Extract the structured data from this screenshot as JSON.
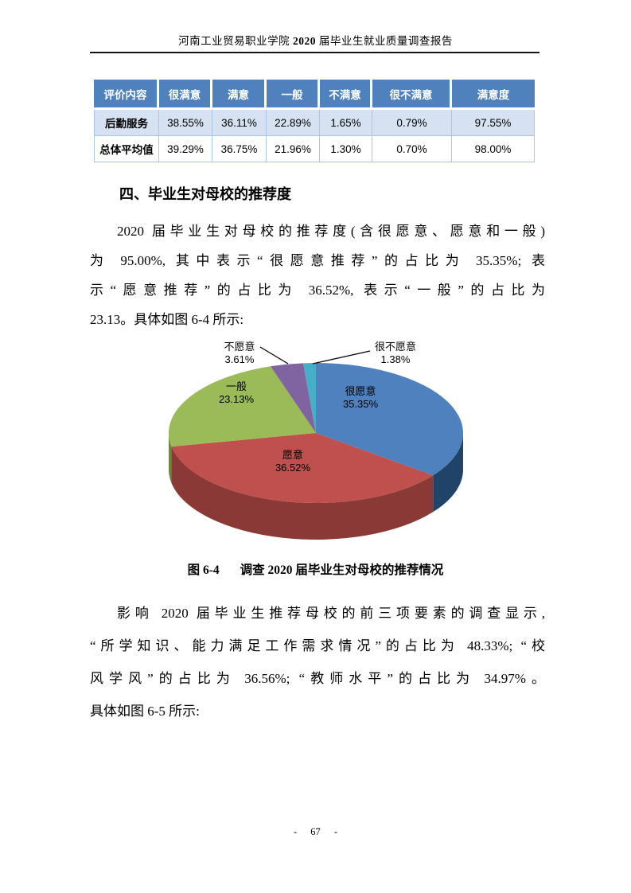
{
  "page": {
    "header_title_parts": [
      "河南工业贸易职业学院 ",
      "2020",
      " 届毕业生就业质量调查报告"
    ],
    "page_number": "- 67 -"
  },
  "table": {
    "headers": [
      "评价内容",
      "很满意",
      "满意",
      "一般",
      "不满意",
      "很不满意",
      "满意度"
    ],
    "rows": [
      {
        "label": "后勤服务",
        "values": [
          "38.55%",
          "36.11%",
          "22.89%",
          "1.65%",
          "0.79%",
          "97.55%"
        ]
      },
      {
        "label": "总体平均值",
        "values": [
          "39.29%",
          "36.75%",
          "21.96%",
          "1.30%",
          "0.70%",
          "98.00%"
        ]
      }
    ],
    "header_bg": "#4f81bd",
    "alt_row_bg": "#d6e2f1",
    "border_color": "#a9c4e4"
  },
  "section": {
    "heading": "四、毕业生对母校的推荐度"
  },
  "para1_lines": [
    "2020 届毕业生对母校的推荐度(含很愿意、愿意和一般)",
    "为 95.00%, 其中表示“很愿意推荐”的占比为 35.35%; 表",
    "示“愿意推荐”的占比为 36.52%, 表示“一般”的占比为",
    "23.13。具体如图 6-4 所示:"
  ],
  "figure": {
    "caption_label": "图 6-4",
    "caption_text": "调查 2020 届毕业生对母校的推荐情况"
  },
  "para2_lines": [
    "影响 2020 届毕业生推荐母校的前三项要素的调查显示,",
    "“所学知识、能力满足工作需求情况”的占比为 48.33%; “校",
    "风学风”的占比为 36.56%; “教师水平”的占比为 34.97%。",
    "具体如图 6-5 所示:"
  ],
  "chart_data": {
    "type": "pie",
    "style": "3d",
    "labels": [
      "很愿意",
      "愿意",
      "一般",
      "不愿意",
      "很不愿意"
    ],
    "values": [
      35.35,
      36.52,
      23.13,
      3.61,
      1.38
    ],
    "value_suffix": "%",
    "colors": [
      "#4e81bd",
      "#c0504d",
      "#9bbb59",
      "#8064a2",
      "#45afc7"
    ],
    "side_colors": [
      "#1f4467",
      "#8b3936",
      "#6c863b",
      "#594573",
      "#2c7b90"
    ],
    "start_angle_deg": -90,
    "direction": "clockwise",
    "legend": "none",
    "data_labels": "category name + percent, small slices labeled outside with leader lines"
  }
}
